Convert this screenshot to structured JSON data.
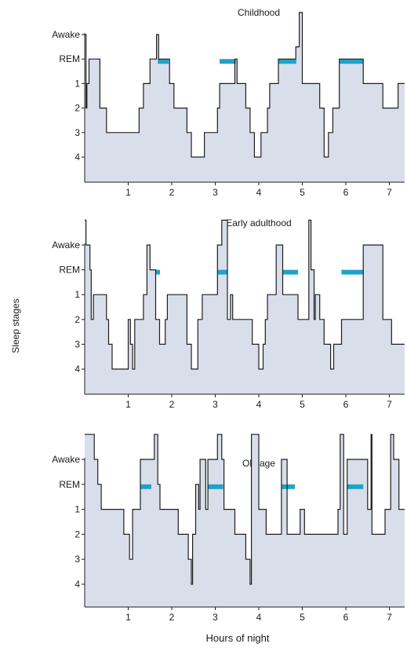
{
  "chart_data": {
    "type": "line",
    "ylabel": "Sleep stages",
    "xlabel": "Hours of night",
    "stage_labels": [
      "Awake",
      "REM",
      "1",
      "2",
      "3",
      "4"
    ],
    "xticks": [
      1,
      2,
      3,
      4,
      5,
      6,
      7
    ],
    "xlim": [
      0,
      7.35
    ],
    "colors": {
      "fill": "#d8deea",
      "line": "#1e1e1e",
      "rem": "#1ea3c8",
      "axis": "#1e1e1e"
    },
    "panels": [
      {
        "title": "Childhood",
        "x": [
          0,
          0.03,
          0.03,
          0.05,
          0.05,
          0.1,
          0.1,
          0.35,
          0.35,
          0.5,
          0.5,
          1.25,
          1.25,
          1.35,
          1.35,
          1.5,
          1.5,
          1.65,
          1.65,
          1.7,
          1.7,
          1.95,
          1.95,
          2.05,
          2.05,
          2.35,
          2.35,
          2.45,
          2.45,
          2.75,
          2.75,
          3.05,
          3.05,
          3.1,
          3.1,
          3.45,
          3.45,
          3.5,
          3.5,
          3.7,
          3.7,
          3.8,
          3.8,
          3.9,
          3.9,
          4.05,
          4.05,
          4.2,
          4.2,
          4.25,
          4.25,
          4.45,
          4.45,
          4.85,
          4.85,
          4.93,
          4.93,
          5.0,
          5.0,
          5.4,
          5.4,
          5.5,
          5.5,
          5.6,
          5.6,
          5.7,
          5.7,
          5.85,
          5.85,
          6.4,
          6.4,
          6.5,
          6.5,
          6.85,
          6.85,
          7.2,
          7.2,
          7.35
        ],
        "stage": [
          5,
          5,
          2,
          2,
          3,
          3,
          4,
          4,
          2,
          2,
          1,
          1,
          2,
          2,
          3,
          3,
          4,
          4,
          5,
          5,
          4,
          4,
          3,
          3,
          2,
          2,
          1,
          1,
          0,
          0,
          1,
          1,
          2,
          2,
          3,
          3,
          4,
          4,
          3,
          3,
          2,
          2,
          1,
          1,
          0,
          0,
          1,
          1,
          2,
          2,
          3,
          3,
          4,
          4,
          4.5,
          4.5,
          5.9,
          5.9,
          3,
          3,
          2,
          2,
          0,
          0,
          1,
          1,
          2,
          2,
          4,
          4,
          3,
          3,
          3,
          3,
          2,
          2,
          3,
          3
        ],
        "rem": [
          [
            1.68,
            1.93
          ],
          [
            3.1,
            3.47
          ],
          [
            4.45,
            4.86
          ],
          [
            5.85,
            6.4
          ]
        ]
      },
      {
        "title": "Early adulthood",
        "x": [
          0,
          0.03,
          0.03,
          0.12,
          0.12,
          0.15,
          0.15,
          0.2,
          0.2,
          0.5,
          0.5,
          0.55,
          0.55,
          0.63,
          0.63,
          1.0,
          1.0,
          1.05,
          1.05,
          1.1,
          1.1,
          1.15,
          1.15,
          1.35,
          1.35,
          1.43,
          1.43,
          1.5,
          1.5,
          1.63,
          1.63,
          1.72,
          1.72,
          1.85,
          1.85,
          1.9,
          1.9,
          2.35,
          2.35,
          2.45,
          2.45,
          2.6,
          2.6,
          2.7,
          2.7,
          3.05,
          3.05,
          3.15,
          3.15,
          3.28,
          3.28,
          3.35,
          3.35,
          3.4,
          3.4,
          3.85,
          3.85,
          4.0,
          4.0,
          4.1,
          4.1,
          4.15,
          4.15,
          4.2,
          4.2,
          4.4,
          4.4,
          4.55,
          4.55,
          4.9,
          4.9,
          5.0,
          5.0,
          5.15,
          5.15,
          5.2,
          5.2,
          5.27,
          5.27,
          5.3,
          5.3,
          5.4,
          5.4,
          5.5,
          5.5,
          5.65,
          5.65,
          5.72,
          5.72,
          5.9,
          5.9,
          6.4,
          6.4,
          6.85,
          6.85,
          7.0,
          7.0,
          7.05,
          7.05,
          7.35
        ],
        "stage": [
          6,
          6,
          5,
          5,
          4,
          4,
          2,
          2,
          3,
          3,
          2,
          2,
          1,
          1,
          0,
          0,
          2,
          2,
          1,
          1,
          0,
          0,
          2,
          2,
          3,
          3,
          5,
          5,
          4,
          4,
          2,
          2,
          1,
          1,
          2,
          2,
          3,
          3,
          1,
          1,
          0,
          0,
          2,
          2,
          3,
          3,
          5,
          5,
          6,
          6,
          2,
          2,
          3,
          3,
          2,
          2,
          1,
          1,
          0,
          0,
          1,
          1,
          2,
          2,
          3,
          3,
          5,
          5,
          3,
          3,
          2,
          2,
          2,
          2,
          6,
          6,
          4,
          4,
          2,
          2,
          3,
          3,
          2,
          2,
          1,
          1,
          0,
          0,
          1,
          1,
          2,
          2,
          5,
          5,
          2,
          2,
          2,
          2,
          1,
          1,
          2,
          2
        ],
        "rem": [
          [
            1.63,
            1.73
          ],
          [
            3.05,
            3.28
          ],
          [
            4.55,
            4.9
          ],
          [
            5.9,
            6.4
          ]
        ]
      },
      {
        "title": "Old age",
        "x": [
          0,
          0.22,
          0.22,
          0.3,
          0.3,
          0.38,
          0.38,
          0.9,
          0.9,
          1.03,
          1.03,
          1.1,
          1.1,
          1.28,
          1.28,
          1.53,
          1.53,
          1.6,
          1.6,
          1.68,
          1.68,
          1.73,
          1.73,
          2.15,
          2.15,
          2.38,
          2.38,
          2.45,
          2.45,
          2.48,
          2.48,
          2.55,
          2.55,
          2.62,
          2.62,
          2.65,
          2.65,
          2.78,
          2.78,
          2.83,
          2.83,
          3.05,
          3.05,
          3.15,
          3.15,
          3.2,
          3.2,
          3.45,
          3.45,
          3.7,
          3.7,
          3.8,
          3.8,
          3.83,
          3.83,
          4.0,
          4.0,
          4.17,
          4.17,
          4.52,
          4.52,
          4.65,
          4.65,
          4.95,
          4.95,
          5.05,
          5.05,
          5.7,
          5.7,
          5.82,
          5.82,
          5.87,
          5.87,
          5.95,
          5.95,
          6.03,
          6.03,
          6.18,
          6.18,
          6.5,
          6.5,
          6.58,
          6.58,
          6.6,
          6.6,
          6.9,
          6.9,
          7.03,
          7.03,
          7.1,
          7.1,
          7.22,
          7.22,
          7.35
        ],
        "stage": [
          6,
          6,
          5,
          5,
          4,
          4,
          3,
          3,
          2,
          2,
          1,
          1,
          3,
          3,
          5,
          5,
          5,
          5,
          6,
          6,
          4,
          4,
          3,
          3,
          2,
          2,
          1,
          1,
          0,
          0,
          2,
          2,
          4,
          4,
          3,
          3,
          5,
          5,
          3,
          3,
          5,
          5,
          6,
          6,
          5,
          5,
          3,
          3,
          2,
          2,
          1,
          1,
          0,
          0,
          6,
          6,
          3,
          3,
          2,
          2,
          5,
          5,
          2,
          2,
          3,
          3,
          2,
          2,
          2,
          2,
          3,
          3,
          6,
          6,
          2,
          2,
          5,
          5,
          5,
          5,
          3,
          3,
          6,
          6,
          2,
          2,
          3,
          3,
          6,
          6,
          5,
          5,
          3,
          3,
          3,
          3
        ],
        "rem": [
          [
            1.28,
            1.53
          ],
          [
            2.83,
            3.18
          ],
          [
            4.52,
            4.83
          ],
          [
            6.03,
            6.4
          ]
        ]
      }
    ]
  }
}
